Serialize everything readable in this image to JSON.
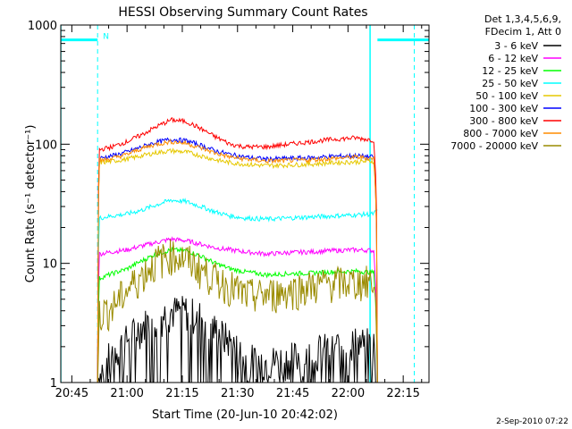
{
  "chart_data": {
    "type": "line",
    "title": "HESSI Observing Summary Count Rates",
    "xlabel": "Start Time (20-Jun-10 20:42:02)",
    "ylabel": "Count Rate (s⁻¹ detector⁻¹)",
    "yscale": "log",
    "ylim": [
      1,
      1000
    ],
    "xlim_minutes": [
      0,
      100
    ],
    "x_ticks": [
      {
        "label": "20:45",
        "minute": 3
      },
      {
        "label": "21:00",
        "minute": 18
      },
      {
        "label": "21:15",
        "minute": 33
      },
      {
        "label": "21:30",
        "minute": 48
      },
      {
        "label": "21:45",
        "minute": 63
      },
      {
        "label": "22:00",
        "minute": 78
      },
      {
        "label": "22:15",
        "minute": 93
      }
    ],
    "y_ticks": [
      {
        "label": "1",
        "value": 1
      },
      {
        "label": "10",
        "value": 10
      },
      {
        "label": "100",
        "value": 100
      },
      {
        "label": "1000",
        "value": 1000
      }
    ],
    "legend": {
      "placement": "right",
      "header": [
        "Det 1,3,4,5,6,9,",
        "FDecim 1, Att 0"
      ]
    },
    "series": [
      {
        "name": "3 - 6 keV",
        "color": "#000000",
        "x": [
          0,
          10,
          10.5,
          14,
          18,
          22,
          26,
          30,
          34,
          38,
          42,
          46,
          50,
          56,
          62,
          68,
          74,
          80,
          85,
          86
        ],
        "y": [
          1,
          1,
          1.2,
          1.8,
          2.3,
          3.0,
          3.5,
          4.0,
          4.0,
          3.6,
          2.8,
          2.2,
          1.6,
          1.5,
          1.6,
          1.8,
          2.0,
          2.2,
          2.1,
          1
        ],
        "noisy": true
      },
      {
        "name": "6 - 12 keV",
        "color": "#ff00ff",
        "x": [
          0,
          10,
          10.5,
          14,
          18,
          22,
          26,
          30,
          34,
          38,
          42,
          46,
          50,
          56,
          62,
          68,
          74,
          80,
          85,
          86
        ],
        "y": [
          1,
          1,
          12,
          12.5,
          13,
          14,
          15,
          16,
          15.5,
          14.5,
          13.5,
          13,
          12.5,
          12,
          12.3,
          12.5,
          12.8,
          13,
          12.8,
          1
        ]
      },
      {
        "name": "12 - 25 keV",
        "color": "#00ff00",
        "x": [
          0,
          10,
          10.5,
          14,
          18,
          22,
          26,
          30,
          34,
          38,
          42,
          46,
          50,
          56,
          62,
          68,
          74,
          80,
          85,
          86
        ],
        "y": [
          1,
          1,
          7.5,
          8.2,
          9,
          10.5,
          12,
          13,
          12.8,
          11.5,
          10,
          9,
          8.5,
          8,
          8.2,
          8.3,
          8.5,
          8.6,
          8.4,
          1
        ]
      },
      {
        "name": "25 - 50 keV",
        "color": "#00ffff",
        "x": [
          0,
          10,
          10.5,
          14,
          18,
          22,
          26,
          30,
          34,
          38,
          42,
          46,
          50,
          56,
          62,
          68,
          74,
          80,
          85,
          86
        ],
        "y": [
          1,
          1,
          24,
          25,
          26,
          28,
          31,
          34,
          33,
          30,
          27,
          25,
          24,
          23.5,
          24,
          24.5,
          25,
          25.5,
          26,
          28
        ]
      },
      {
        "name": "50 - 100 keV",
        "color": "#e6c800",
        "x": [
          0,
          10,
          10.5,
          14,
          18,
          22,
          26,
          30,
          34,
          38,
          42,
          46,
          50,
          56,
          62,
          68,
          74,
          80,
          85,
          86
        ],
        "y": [
          1,
          1,
          70,
          72,
          75,
          80,
          85,
          88,
          86,
          80,
          74,
          70,
          68,
          66,
          67,
          68,
          70,
          71,
          72,
          1
        ]
      },
      {
        "name": "100 - 300 keV",
        "color": "#0000ff",
        "x": [
          0,
          10,
          10.5,
          14,
          18,
          22,
          26,
          30,
          34,
          38,
          42,
          46,
          50,
          56,
          62,
          68,
          74,
          80,
          85,
          86
        ],
        "y": [
          1,
          1,
          76,
          80,
          86,
          95,
          104,
          110,
          107,
          98,
          88,
          82,
          78,
          75,
          76,
          77,
          79,
          80,
          78,
          1
        ]
      },
      {
        "name": "300 - 800 keV",
        "color": "#ff0000",
        "x": [
          0,
          10,
          10.5,
          14,
          18,
          22,
          26,
          30,
          34,
          38,
          42,
          46,
          50,
          56,
          62,
          68,
          74,
          80,
          85,
          86
        ],
        "y": [
          1,
          1,
          90,
          95,
          105,
          120,
          140,
          160,
          155,
          135,
          115,
          100,
          95,
          95,
          100,
          105,
          110,
          113,
          108,
          1
        ]
      },
      {
        "name": "800 - 7000 keV",
        "color": "#ff8c00",
        "x": [
          0,
          10,
          10.5,
          14,
          18,
          22,
          26,
          30,
          34,
          38,
          42,
          46,
          50,
          56,
          62,
          68,
          74,
          80,
          85,
          86
        ],
        "y": [
          1,
          1,
          73,
          76,
          82,
          92,
          100,
          105,
          102,
          93,
          84,
          78,
          75,
          72,
          73,
          74,
          76,
          78,
          76,
          1
        ]
      },
      {
        "name": "7000 - 20000 keV",
        "color": "#9a8b00",
        "x": [
          0,
          10,
          10.5,
          14,
          18,
          22,
          26,
          30,
          34,
          38,
          42,
          46,
          50,
          56,
          62,
          68,
          74,
          80,
          85,
          86
        ],
        "y": [
          1,
          1,
          3.8,
          4.3,
          6,
          8,
          10.5,
          12,
          11,
          9,
          7.5,
          6.5,
          5.5,
          5.5,
          6,
          6.5,
          7,
          7,
          7.2,
          1
        ],
        "noisy": true
      }
    ],
    "annotations": {
      "top_segments_color": "#00ffff",
      "top_segments_value": 750,
      "top_segments": [
        [
          0,
          10
        ],
        [
          86,
          100
        ]
      ],
      "flag_label": "N",
      "vertical_lines_solid": [
        0,
        84
      ],
      "vertical_lines_dashed": [
        10,
        96
      ]
    }
  },
  "footer": {
    "date": "2-Sep-2010 07:22"
  }
}
